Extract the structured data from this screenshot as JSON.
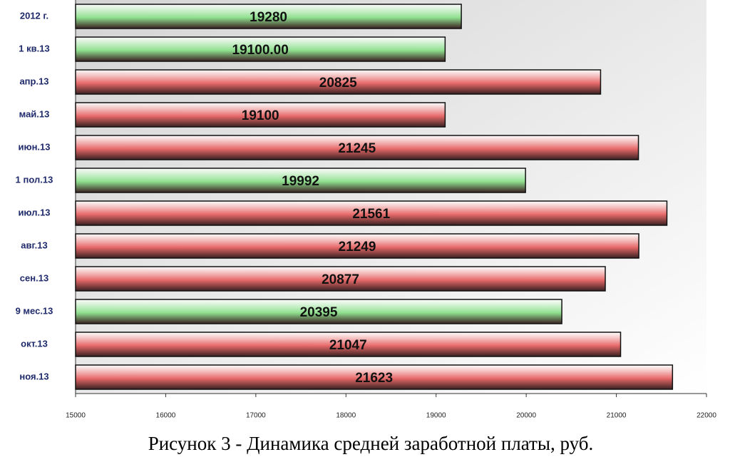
{
  "chart_data": {
    "type": "bar",
    "orientation": "horizontal",
    "title": "Рисунок 3 - Динамика средней заработной платы, руб.",
    "categories": [
      "2012 г.",
      "1 кв.13",
      "апр.13",
      "май.13",
      "июн.13",
      "1 пол.13",
      "июл.13",
      "авг.13",
      "сен.13",
      "9 мес.13",
      "окт.13",
      "ноя.13"
    ],
    "values": [
      19280,
      19100,
      20825,
      19100,
      21245,
      19992,
      21561,
      21249,
      20877,
      20395,
      21047,
      21623
    ],
    "value_labels": [
      "19280",
      "19100.00",
      "20825",
      "19100",
      "21245",
      "19992",
      "21561",
      "21249",
      "20877",
      "20395",
      "21047",
      "21623"
    ],
    "colors": [
      "#8fe08f",
      "#8fe08f",
      "#e86a6a",
      "#e86a6a",
      "#e86a6a",
      "#8fe08f",
      "#e86a6a",
      "#e86a6a",
      "#e86a6a",
      "#8fe08f",
      "#e86a6a",
      "#e86a6a"
    ],
    "xlim": [
      15000,
      22000
    ],
    "xticks": [
      15000,
      16000,
      17000,
      18000,
      19000,
      20000,
      21000,
      22000
    ]
  }
}
